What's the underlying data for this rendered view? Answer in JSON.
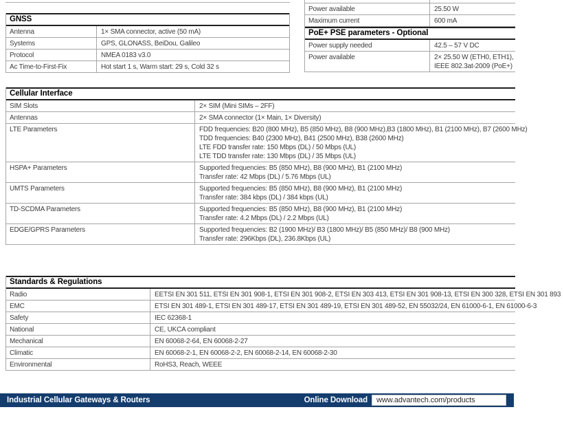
{
  "colors": {
    "footer_bg": "#143d6e",
    "border_dark": "#1f1f1f",
    "border_light": "#a5a5a5",
    "body_text": "#3d3d3d"
  },
  "tables": {
    "gnss": {
      "title": "GNSS",
      "rows": [
        {
          "label": "Antenna",
          "value": [
            "1× SMA connector, active (50 mA)"
          ]
        },
        {
          "label": "Systems",
          "value": [
            "GPS, GLONASS, BeiDou, Galileo"
          ]
        },
        {
          "label": "Protocol",
          "value": [
            "NMEA 0183 v3.0"
          ]
        },
        {
          "label": "Ac Time-to-First-Fix",
          "value": [
            "Hot start 1 s, Warm start: 29 s, Cold 32 s"
          ]
        }
      ]
    },
    "power_top": {
      "rows": [
        {
          "label": "Power available",
          "value": [
            "25.50 W"
          ]
        },
        {
          "label": "Maximum current",
          "value": [
            "600 mA"
          ]
        }
      ]
    },
    "poe_pse": {
      "title": "PoE+ PSE parameters - Optional",
      "rows": [
        {
          "label": "Power supply needed",
          "value": [
            "42.5 – 57 V DC"
          ]
        },
        {
          "label": "Power available",
          "value": [
            "2× 25.50 W (ETH0, ETH1),",
            "IEEE 802.3at-2009 (PoE+)"
          ]
        }
      ]
    },
    "cellular": {
      "title": "Cellular Interface",
      "rows": [
        {
          "label": "SIM Slots",
          "value": [
            "2× SIM (Mini SIMs – 2FF)"
          ]
        },
        {
          "label": "Antennas",
          "value": [
            "2× SMA connector (1× Main, 1× Diversity)"
          ]
        },
        {
          "label": "LTE Parameters",
          "value": [
            "FDD frequencies: B20 (800 MHz), B5 (850 MHz), B8 (900 MHz),B3 (1800 MHz), B1 (2100 MHz), B7 (2600 MHz)",
            "TDD frequencies: B40 (2300 MHz), B41 (2500 MHz), B38 (2600 MHz)",
            "LTE FDD transfer rate: 150 Mbps (DL) / 50 Mbps (UL)",
            "LTE TDD transfer rate: 130 Mbps (DL) / 35 Mbps (UL)"
          ]
        },
        {
          "label": "HSPA+ Parameters",
          "value": [
            "Supported frequencies: B5 (850 MHz), B8 (900 MHz), B1 (2100 MHz)",
            "Transfer rate: 42 Mbps (DL) / 5.76 Mbps (UL)"
          ]
        },
        {
          "label": "UMTS Parameters",
          "value": [
            "Supported frequencies: B5 (850 MHz), B8 (900 MHz), B1 (2100 MHz)",
            "Transfer rate: 384 kbps (DL) / 384 kbps (UL)"
          ]
        },
        {
          "label": "TD-SCDMA Parameters",
          "value": [
            "Supported frequencies: B5 (850 MHz), B8 (900 MHz), B1 (2100 MHz)",
            "Transfer rate: 4.2 Mbps (DL) / 2.2 Mbps (UL)"
          ]
        },
        {
          "label": "EDGE/GPRS Parameters",
          "value": [
            "Supported frequencies: B2 (1900 MHz)/ B3 (1800 MHz)/ B5 (850 MHz)/ B8 (900 MHz)",
            "Transfer rate: 296Kbps (DL), 236.8Kbps (UL)"
          ]
        }
      ]
    },
    "standards": {
      "title": "Standards & Regulations",
      "rows": [
        {
          "label": "Radio",
          "value": [
            "EETSI EN 301 511, ETSI EN 301 908-1, ETSI EN 301 908-2, ETSI EN 303 413, ETSI EN 301 908-13, ETSI EN 300 328, ETSI EN 301 893"
          ]
        },
        {
          "label": "EMC",
          "value": [
            "ETSI EN 301 489-1, ETSI EN 301 489-17, ETSI EN 301 489-19, ETSI EN 301 489-52, EN 55032/24, EN 61000-6-1, EN 61000-6-3"
          ]
        },
        {
          "label": "Safety",
          "value": [
            "IEC 62368-1"
          ]
        },
        {
          "label": "National",
          "value": [
            "CE, UKCA compliant"
          ]
        },
        {
          "label": "Mechanical",
          "value": [
            "EN 60068-2-64, EN 60068-2-27"
          ]
        },
        {
          "label": "Climatic",
          "value": [
            "EN 60068-2-1, EN 60068-2-2, EN 60068-2-14, EN 60068-2-30"
          ]
        },
        {
          "label": "Environmental",
          "value": [
            "RoHS3, Reach, WEEE"
          ]
        }
      ]
    }
  },
  "footer": {
    "left_label": "Industrial Cellular Gateways & Routers",
    "download_label": "Online Download",
    "download_url": "www.advantech.com/products"
  }
}
